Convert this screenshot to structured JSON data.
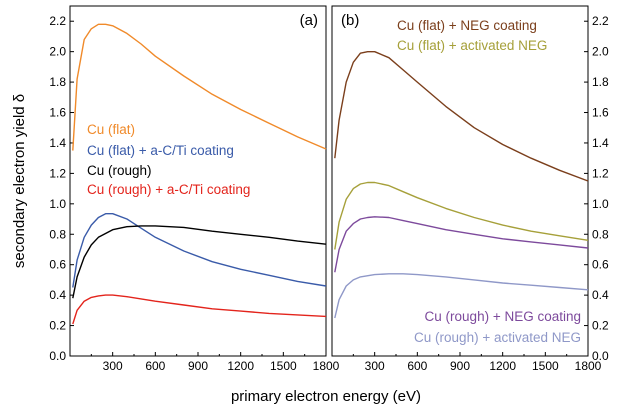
{
  "chart_data": [
    {
      "type": "line",
      "panel_label": "(a)",
      "xlabel": "primary electron energy (eV)",
      "ylabel": "secondary electron yield  δ",
      "xlim": [
        0,
        1800
      ],
      "ylim": [
        0,
        2.3
      ],
      "xticks": [
        300,
        600,
        900,
        1200,
        1500,
        1800
      ],
      "yticks": [
        0.0,
        0.2,
        0.4,
        0.6,
        0.8,
        1.0,
        1.2,
        1.4,
        1.6,
        1.8,
        2.0,
        2.2
      ],
      "ytick_labels": [
        "0.0",
        "0.2",
        "0.4",
        "0.6",
        "0.8",
        "1.0",
        "1.2",
        "1.4",
        "1.6",
        "1.8",
        "2.0",
        "2.2"
      ],
      "legend_position": "center-left",
      "series": [
        {
          "name": "Cu (flat)",
          "color": "#f08a2a",
          "x": [
            20,
            50,
            100,
            150,
            200,
            250,
            300,
            400,
            500,
            600,
            800,
            1000,
            1200,
            1400,
            1600,
            1800
          ],
          "y": [
            1.35,
            1.82,
            2.08,
            2.15,
            2.18,
            2.18,
            2.17,
            2.12,
            2.05,
            1.97,
            1.84,
            1.72,
            1.62,
            1.53,
            1.44,
            1.36
          ]
        },
        {
          "name": "Cu (flat) + a-C/Ti coating",
          "color": "#3a5ba9",
          "x": [
            20,
            50,
            100,
            150,
            200,
            250,
            300,
            400,
            500,
            600,
            800,
            1000,
            1200,
            1400,
            1600,
            1800
          ],
          "y": [
            0.45,
            0.63,
            0.78,
            0.86,
            0.91,
            0.935,
            0.935,
            0.9,
            0.84,
            0.78,
            0.69,
            0.62,
            0.57,
            0.53,
            0.49,
            0.46
          ]
        },
        {
          "name": "Cu (rough)",
          "color": "#000000",
          "x": [
            20,
            50,
            100,
            150,
            200,
            300,
            400,
            500,
            600,
            800,
            1000,
            1200,
            1400,
            1600,
            1800
          ],
          "y": [
            0.38,
            0.52,
            0.65,
            0.73,
            0.78,
            0.83,
            0.85,
            0.855,
            0.855,
            0.845,
            0.82,
            0.8,
            0.78,
            0.755,
            0.735
          ]
        },
        {
          "name": "Cu (rough) + a-C/Ti coating",
          "color": "#e3241c",
          "x": [
            20,
            50,
            100,
            150,
            200,
            250,
            300,
            400,
            500,
            600,
            800,
            1000,
            1200,
            1400,
            1600,
            1800
          ],
          "y": [
            0.21,
            0.3,
            0.36,
            0.385,
            0.395,
            0.4,
            0.4,
            0.39,
            0.375,
            0.36,
            0.335,
            0.31,
            0.295,
            0.28,
            0.27,
            0.26
          ]
        }
      ]
    },
    {
      "type": "line",
      "panel_label": "(b)",
      "xlim": [
        0,
        1800
      ],
      "ylim": [
        0,
        2.3
      ],
      "xticks": [
        300,
        600,
        900,
        1200,
        1500,
        1800
      ],
      "yticks": [
        0.0,
        0.2,
        0.4,
        0.6,
        0.8,
        1.0,
        1.2,
        1.4,
        1.6,
        1.8,
        2.0,
        2.2
      ],
      "ytick_labels": [
        "0.0",
        "0.2",
        "0.4",
        "0.6",
        "0.8",
        "1.0",
        "1.2",
        "1.4",
        "1.6",
        "1.8",
        "2.0",
        "2.2"
      ],
      "legend_position": "top-right and bottom-right",
      "series": [
        {
          "name": "Cu (flat) + NEG coating",
          "color": "#7b3f1c",
          "x": [
            20,
            50,
            100,
            150,
            200,
            250,
            300,
            400,
            500,
            600,
            800,
            1000,
            1200,
            1400,
            1600,
            1800
          ],
          "y": [
            1.3,
            1.55,
            1.8,
            1.93,
            1.99,
            2.0,
            2.0,
            1.96,
            1.88,
            1.8,
            1.64,
            1.5,
            1.39,
            1.3,
            1.22,
            1.15
          ]
        },
        {
          "name": "Cu (flat) + activated NEG",
          "color": "#a6a03a",
          "x": [
            20,
            50,
            100,
            150,
            200,
            250,
            300,
            400,
            500,
            600,
            800,
            1000,
            1200,
            1400,
            1600,
            1800
          ],
          "y": [
            0.7,
            0.88,
            1.03,
            1.1,
            1.13,
            1.14,
            1.14,
            1.12,
            1.08,
            1.04,
            0.97,
            0.91,
            0.86,
            0.82,
            0.79,
            0.76
          ]
        },
        {
          "name": "Cu (rough) + NEG coating",
          "color": "#7d4a9c",
          "x": [
            20,
            50,
            100,
            150,
            200,
            250,
            300,
            400,
            500,
            600,
            800,
            1000,
            1200,
            1400,
            1600,
            1800
          ],
          "y": [
            0.55,
            0.7,
            0.82,
            0.87,
            0.9,
            0.91,
            0.915,
            0.91,
            0.89,
            0.87,
            0.83,
            0.8,
            0.77,
            0.75,
            0.73,
            0.71
          ]
        },
        {
          "name": "Cu (rough) + activated NEG",
          "color": "#8f98c8",
          "x": [
            20,
            50,
            100,
            150,
            200,
            300,
            400,
            500,
            600,
            800,
            1000,
            1200,
            1400,
            1600,
            1800
          ],
          "y": [
            0.25,
            0.37,
            0.46,
            0.5,
            0.52,
            0.535,
            0.54,
            0.54,
            0.535,
            0.52,
            0.5,
            0.48,
            0.465,
            0.45,
            0.435
          ]
        }
      ]
    }
  ]
}
